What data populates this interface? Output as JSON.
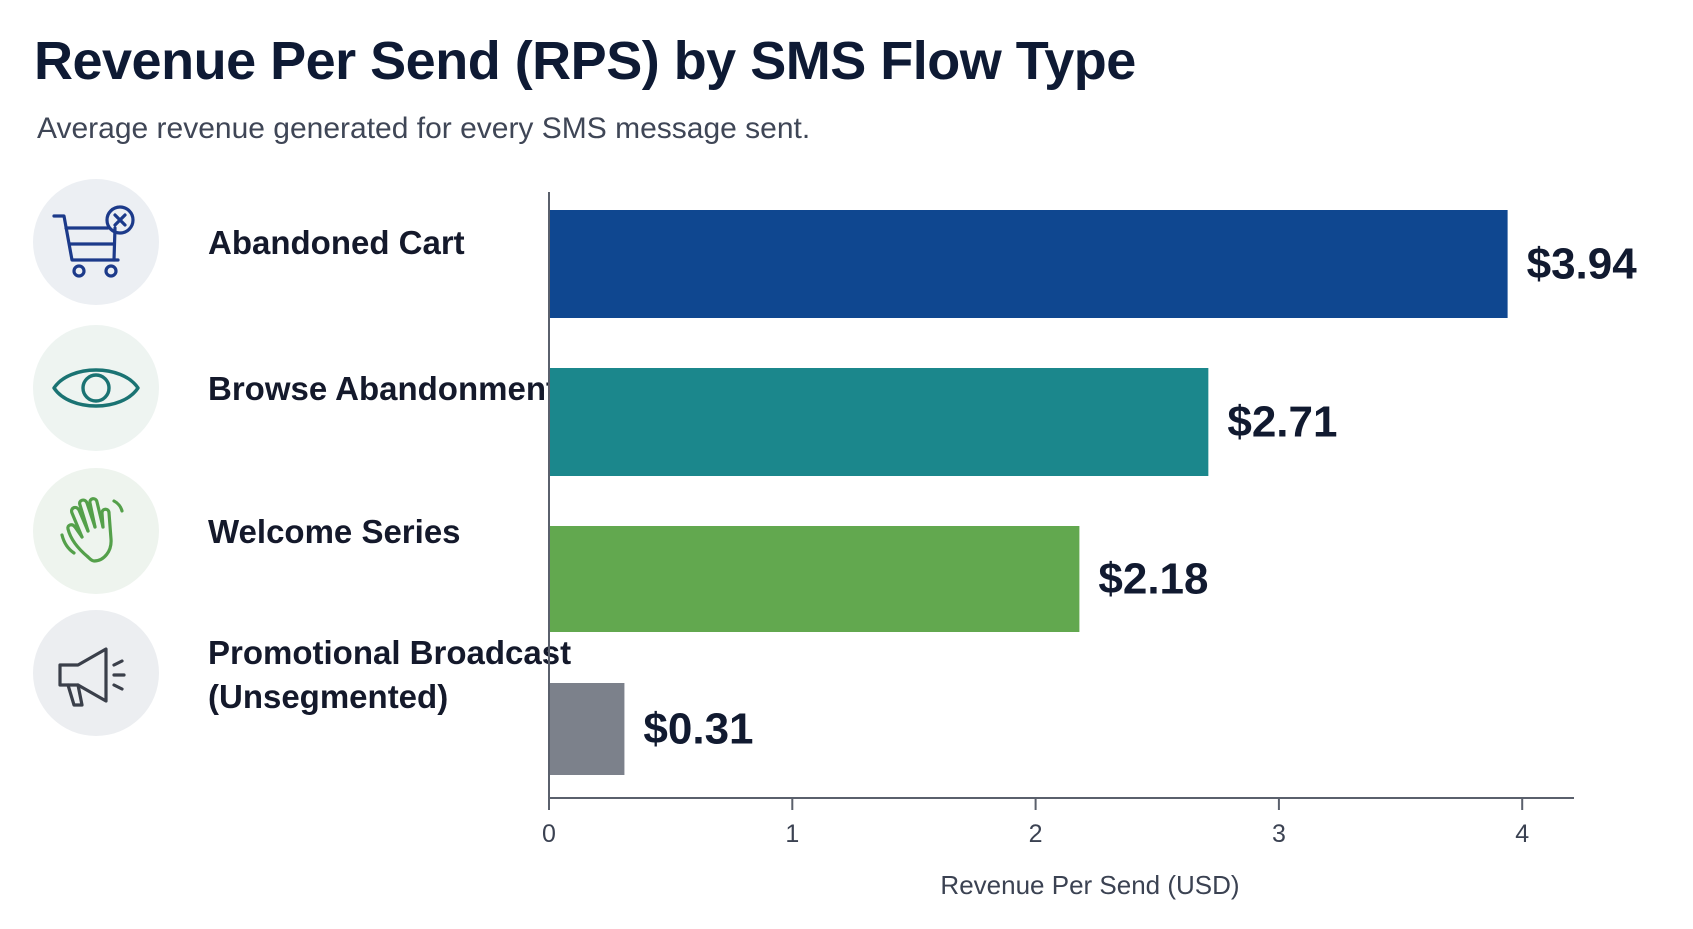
{
  "chart_data": {
    "type": "bar",
    "orientation": "horizontal",
    "title": "Revenue Per Send (RPS) by SMS Flow Type",
    "subtitle": "Average revenue generated for every SMS message sent.",
    "xlabel": "Revenue Per Send (USD)",
    "ylabel": "",
    "xlim": [
      0,
      4.18
    ],
    "xticks": [
      0,
      1,
      2,
      3,
      4
    ],
    "grid": false,
    "categories": [
      "Abandoned Cart",
      "Browse Abandonment",
      "Welcome Series",
      "Promotional Broadcast (Unsegmented)"
    ],
    "category_lines": [
      [
        "Abandoned Cart"
      ],
      [
        "Browse Abandonment"
      ],
      [
        "Welcome Series"
      ],
      [
        "Promotional Broadcast",
        "(Unsegmented)"
      ]
    ],
    "values": [
      3.94,
      2.71,
      2.18,
      0.31
    ],
    "value_labels": [
      "$3.94",
      "$2.71",
      "$2.18",
      "$0.31"
    ],
    "bar_colors": [
      "#0f4790",
      "#1b878c",
      "#62a84f",
      "#7c818b"
    ],
    "icons": [
      "cart-x-icon",
      "eye-icon",
      "waving-hand-icon",
      "megaphone-icon"
    ],
    "icon_colors": [
      "#1c3a8a",
      "#1a7373",
      "#54a04a",
      "#3a3f4a"
    ],
    "icon_bg_colors": [
      "#eceff3",
      "#eef4f1",
      "#eef4ee",
      "#eceef1"
    ]
  }
}
